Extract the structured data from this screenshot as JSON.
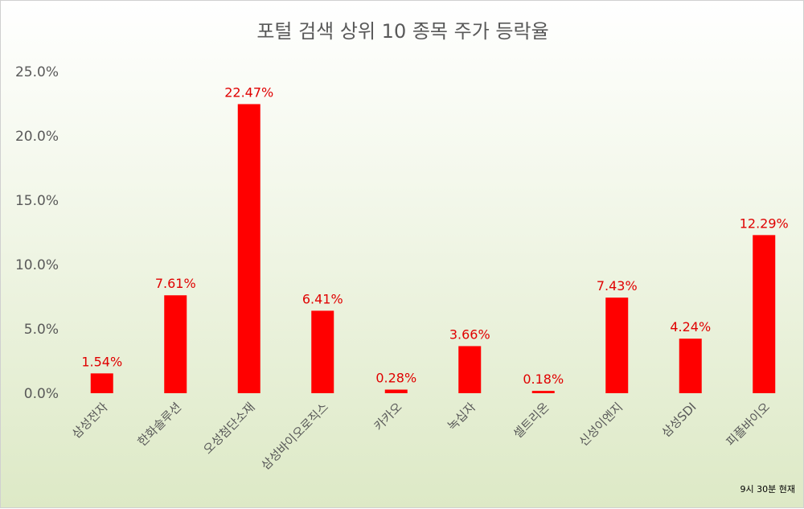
{
  "chart_data": {
    "type": "bar",
    "title": "포털 검색 상위 10 종목 주가 등락율",
    "categories": [
      "삼성전자",
      "한화솔루션",
      "오성첨단소재",
      "삼성바이오로직스",
      "카카오",
      "녹십자",
      "셀트리온",
      "신성이엔지",
      "삼성SDI",
      "피플바이오"
    ],
    "values": [
      1.54,
      7.61,
      22.47,
      6.41,
      0.28,
      3.66,
      0.18,
      7.43,
      4.24,
      12.29
    ],
    "data_labels": [
      "1.54%",
      "7.61%",
      "22.47%",
      "6.41%",
      "0.28%",
      "3.66%",
      "0.18%",
      "7.43%",
      "4.24%",
      "12.29%"
    ],
    "y_ticks": [
      0,
      5,
      10,
      15,
      20,
      25
    ],
    "y_tick_labels": [
      "0.0%",
      "5.0%",
      "10.0%",
      "15.0%",
      "20.0%",
      "25.0%"
    ],
    "ylim": [
      0,
      25
    ],
    "xlabel": "",
    "ylabel": "",
    "grid": false,
    "legend": "none",
    "footnote": "9시  30분 현재",
    "colors": {
      "bar": "#ff0000",
      "data_label": "#e00000",
      "axis_text": "#595959",
      "background_top": "#ffffff",
      "background_bottom": "#dde9c6"
    }
  }
}
